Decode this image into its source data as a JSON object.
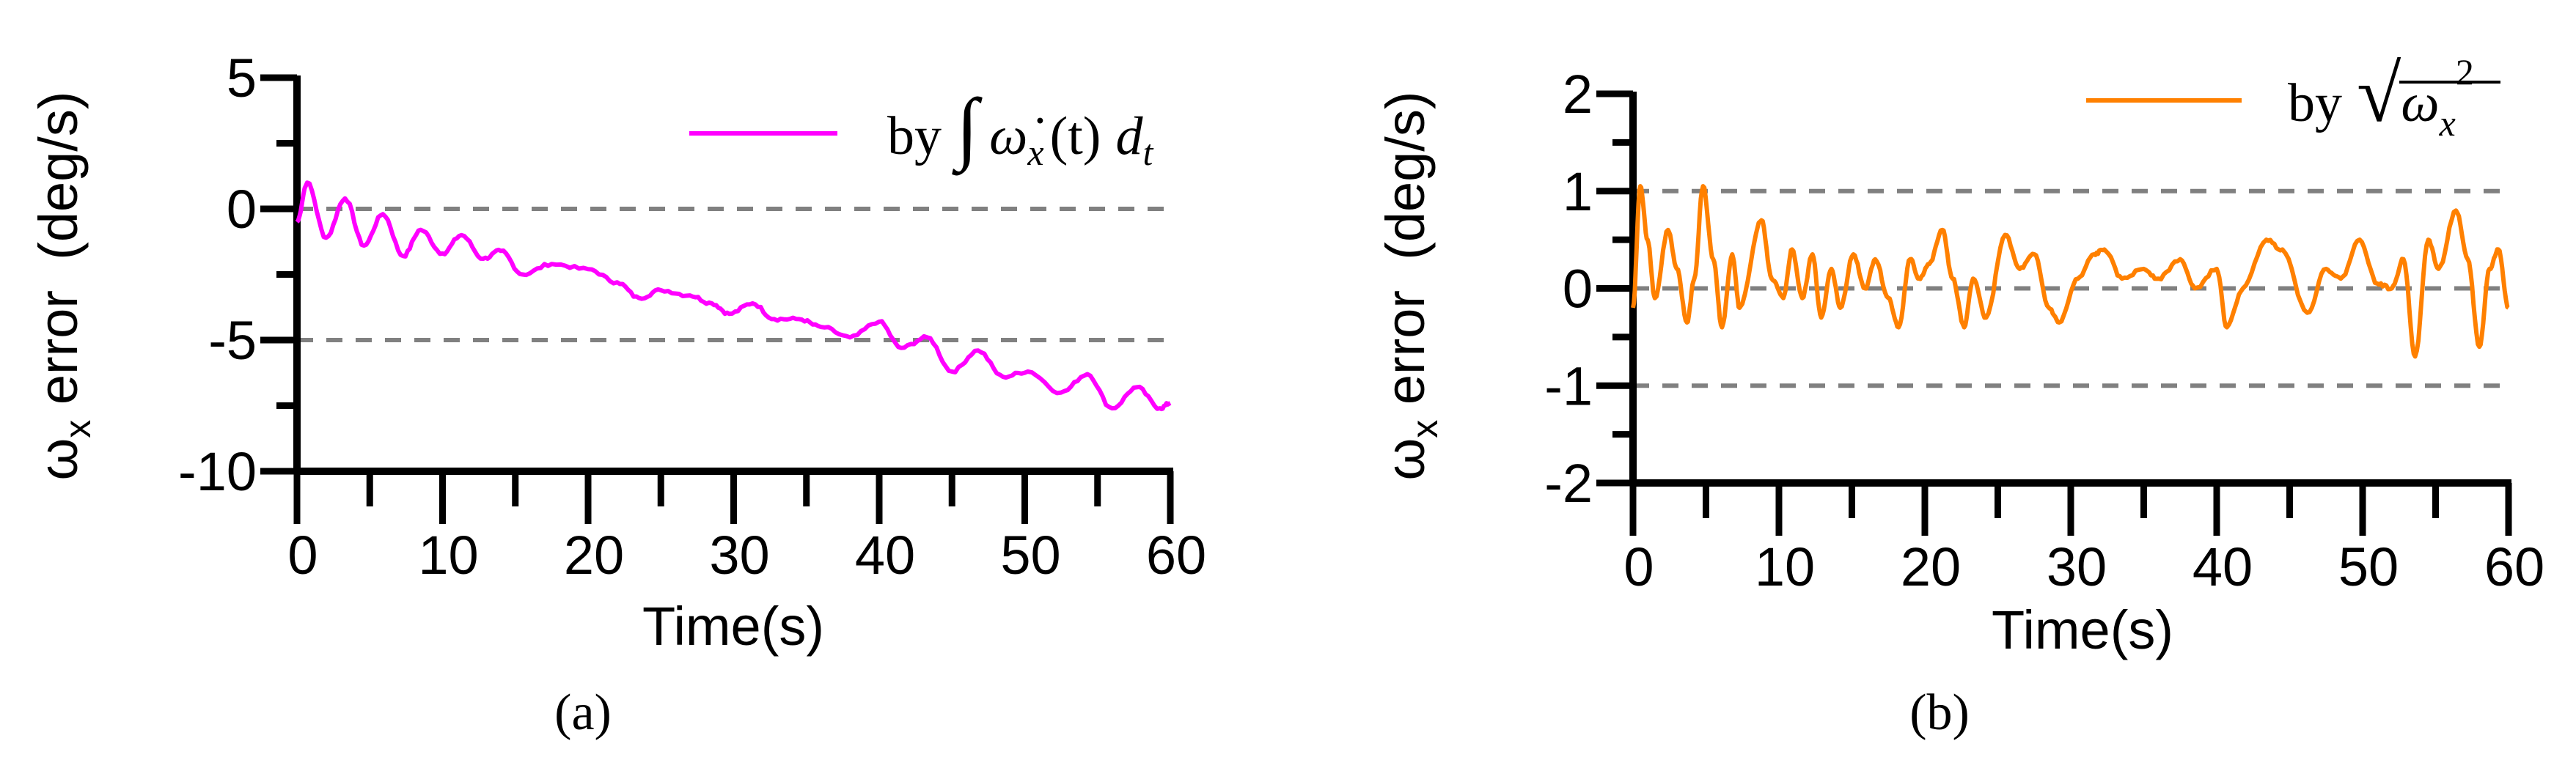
{
  "chart_data": [
    {
      "type": "line",
      "panel_label": "(a)",
      "xlabel": "Time(s)",
      "ylabel": {
        "symbol": "ω",
        "subscript": "x",
        "text": " error  (deg/s)"
      },
      "xlim": [
        0,
        60
      ],
      "ylim": [
        -10,
        5
      ],
      "xticks": [
        0,
        10,
        20,
        30,
        40,
        50,
        60
      ],
      "yticks": [
        5,
        0,
        -5,
        -10
      ],
      "reference_lines": [
        0,
        -5
      ],
      "legend": {
        "by": "by",
        "integral": "∫",
        "omega_dot": "ω̇",
        "sub": "x",
        "arg": "(t)",
        "d": "d",
        "dsub": "t"
      },
      "legend_placement": "top-right",
      "color": "#ff00ff",
      "series": [
        {
          "x": [
            0,
            0.7,
            2,
            3.3,
            4.6,
            5.9,
            7.3,
            8.5,
            10,
            11.3,
            12.8,
            14,
            15.5,
            17.5,
            20,
            22,
            23.5,
            25,
            27,
            28.5,
            29.7,
            31.3,
            32.8,
            34.5,
            36,
            38,
            40,
            41.5,
            43.3,
            45,
            46.8,
            48.5,
            50.2,
            52.5,
            54.3,
            56,
            57.7,
            59.3,
            60
          ],
          "y": [
            -0.5,
            1.0,
            -1.1,
            0.4,
            -1.4,
            -0.2,
            -1.8,
            -0.8,
            -1.7,
            -1.0,
            -1.9,
            -1.6,
            -2.5,
            -2.1,
            -2.3,
            -2.8,
            -3.4,
            -3.1,
            -3.3,
            -3.6,
            -4.0,
            -3.6,
            -4.2,
            -4.2,
            -4.5,
            -4.9,
            -4.3,
            -5.3,
            -4.9,
            -6.2,
            -5.4,
            -6.4,
            -6.2,
            -7.0,
            -6.3,
            -7.6,
            -6.8,
            -7.6,
            -7.4
          ]
        }
      ]
    },
    {
      "type": "line",
      "panel_label": "(b)",
      "xlabel": "Time(s)",
      "ylabel": {
        "symbol": "ω",
        "subscript": "x",
        "text": " error  (deg/s)"
      },
      "xlim": [
        0,
        60
      ],
      "ylim": [
        -2,
        2
      ],
      "xticks": [
        0,
        10,
        20,
        30,
        40,
        50,
        60
      ],
      "yticks": [
        2,
        1,
        0,
        -1,
        -2
      ],
      "reference_lines": [
        1,
        0,
        -1
      ],
      "legend": {
        "by": "by",
        "sqrt": "√",
        "omega": "ω",
        "sub": "x",
        "sup": "2"
      },
      "legend_placement": "top-right",
      "color": "#ff8000",
      "series": [
        {
          "x": [
            0,
            0.5,
            1,
            1.5,
            2.4,
            3.0,
            3.7,
            4.2,
            4.8,
            5.5,
            6.1,
            6.8,
            7.3,
            8.8,
            9.5,
            10.3,
            10.9,
            11.6,
            12.3,
            12.9,
            13.6,
            14.2,
            15.1,
            15.9,
            16.6,
            17.5,
            18.2,
            19,
            19.6,
            20.3,
            21.2,
            21.9,
            22.7,
            23.3,
            24.2,
            25.5,
            26.5,
            27.5,
            28.5,
            29.2,
            30.5,
            31.6,
            32.3,
            33.5,
            35,
            36,
            37.5,
            38.5,
            40,
            40.7,
            41.8,
            43.4,
            44.5,
            46.2,
            47.5,
            48.5,
            49.8,
            51,
            52,
            52.8,
            53.6,
            54.5,
            55.2,
            56.4,
            57.2,
            58,
            58.7,
            59.3,
            60
          ],
          "y": [
            -0.2,
            1.05,
            0.5,
            -0.1,
            0.6,
            0.2,
            -0.35,
            0.1,
            1.05,
            0.3,
            -0.4,
            0.35,
            -0.2,
            0.7,
            0.1,
            -0.1,
            0.4,
            -0.1,
            0.35,
            -0.3,
            0.2,
            -0.2,
            0.35,
            0.0,
            0.3,
            -0.1,
            -0.4,
            0.3,
            0.1,
            0.25,
            0.6,
            0.1,
            -0.4,
            0.1,
            -0.3,
            0.55,
            0.2,
            0.35,
            -0.2,
            -0.35,
            0.1,
            0.35,
            0.4,
            0.1,
            0.2,
            0.1,
            0.3,
            0.0,
            0.2,
            -0.4,
            0.0,
            0.5,
            0.4,
            -0.25,
            0.2,
            0.1,
            0.5,
            0.05,
            0.0,
            0.3,
            -0.7,
            0.5,
            0.2,
            0.8,
            0.3,
            -0.6,
            0.2,
            0.4,
            -0.2
          ]
        }
      ]
    }
  ]
}
